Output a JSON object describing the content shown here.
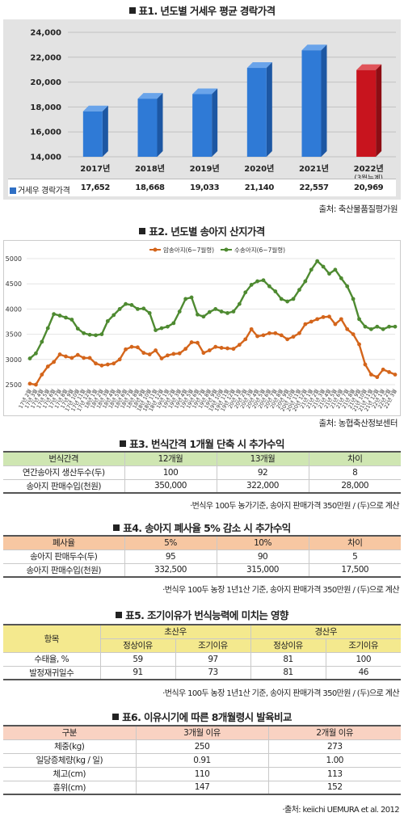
{
  "t1": {
    "title": "표1. 년도별 거세우 평균 경락가격",
    "source": "출처: 축산물품질평가원",
    "row_label": "거세우 경락가격",
    "years": [
      "2017년",
      "2018년",
      "2019년",
      "2020년",
      "2021년",
      "2022년"
    ],
    "year_sub": "(3월누계)",
    "values_text": [
      "17,652",
      "18,668",
      "19,033",
      "21,140",
      "22,557",
      "20,969"
    ],
    "yticks": [
      "24,000",
      "22,000",
      "20,000",
      "18,000",
      "16,000",
      "14,000"
    ],
    "colors": {
      "bar": "#2f7ad6",
      "highlight": "#c8141e",
      "legend": "#2f6fc4"
    }
  },
  "chart_data": [
    {
      "type": "bar",
      "title": "표1. 년도별 거세우 평균 경락가격",
      "categories": [
        "2017년",
        "2018년",
        "2019년",
        "2020년",
        "2021년",
        "2022년"
      ],
      "series": [
        {
          "name": "거세우 경락가격",
          "values": [
            17652,
            18668,
            19033,
            21140,
            22557,
            20969
          ]
        }
      ],
      "ylim": [
        14000,
        24000
      ],
      "grid": true
    },
    {
      "type": "line",
      "title": "표2. 년도별 송아지 산지가격",
      "x": [
        "17년 2월",
        "17년 3월",
        "17년 4월",
        "17년 5월",
        "17년 6월",
        "17년 7월",
        "17년 8월",
        "17년 9월",
        "17년 10월",
        "17년 11월",
        "17년 12월",
        "18년 1월",
        "18년 2월",
        "18년 3월",
        "18년 4월",
        "18년 5월",
        "18년 6월",
        "18년 7월",
        "18년 8월",
        "18년 9월",
        "18년 10월",
        "18년 11월",
        "18년 12월",
        "19년 1월",
        "19년 2월",
        "19년 3월",
        "19년 4월",
        "19년 5월",
        "19년 6월",
        "19년 7월",
        "19년 8월",
        "19년 9월",
        "19년 10월",
        "19년 11월",
        "19년 12월",
        "20년 1월",
        "20년 2월",
        "20년 3월",
        "20년 4월",
        "20년 5월",
        "20년 6월",
        "20년 7월",
        "20년 8월",
        "20년 9월",
        "20년 10월",
        "20년 11월",
        "20년 12월",
        "21년 1월",
        "21년 2월",
        "21년 3월",
        "21년 4월",
        "21년 5월",
        "21년 6월",
        "21년 7월",
        "21년 8월",
        "21년 9월",
        "21년 10월",
        "21년 11월",
        "21년 12월",
        "22년 1월",
        "22년 2월",
        "22년 3월"
      ],
      "series": [
        {
          "name": "암송아지(6~7월령)",
          "values": [
            2520,
            2500,
            2700,
            2860,
            2950,
            3100,
            3060,
            3030,
            3090,
            3030,
            3030,
            2920,
            2880,
            2900,
            2920,
            3000,
            3200,
            3250,
            3240,
            3130,
            3100,
            3180,
            3020,
            3080,
            3110,
            3120,
            3210,
            3340,
            3330,
            3130,
            3180,
            3250,
            3230,
            3220,
            3210,
            3290,
            3400,
            3600,
            3460,
            3480,
            3520,
            3520,
            3480,
            3400,
            3450,
            3520,
            3700,
            3750,
            3800,
            3840,
            3850,
            3700,
            3800,
            3600,
            3500,
            3300,
            2900,
            2700,
            2650,
            2800,
            2750,
            2700
          ]
        },
        {
          "name": "수송아지(6~7월령)",
          "values": [
            3020,
            3120,
            3350,
            3620,
            3900,
            3870,
            3830,
            3790,
            3610,
            3520,
            3490,
            3480,
            3500,
            3760,
            3880,
            4000,
            4100,
            4080,
            4000,
            4010,
            3920,
            3580,
            3620,
            3650,
            3720,
            3950,
            4200,
            4230,
            3890,
            3850,
            3940,
            4000,
            3950,
            3920,
            3950,
            4100,
            4330,
            4480,
            4550,
            4570,
            4450,
            4350,
            4200,
            4150,
            4200,
            4380,
            4550,
            4780,
            4950,
            4840,
            4700,
            4780,
            4610,
            4450,
            4200,
            3800,
            3650,
            3600,
            3650,
            3600,
            3650,
            3650
          ]
        }
      ],
      "ylim": [
        2500,
        5000
      ],
      "grid": true
    }
  ],
  "t2": {
    "title": "표2. 년도별 송아지 산지가격",
    "source": "출처: 농협축산정보센터",
    "legend": [
      "암송아지(6~7월령)",
      "수송아지(6~7월령)"
    ],
    "yticks": [
      "5000",
      "4500",
      "4000",
      "3500",
      "3000",
      "2500"
    ],
    "xlabels": [
      "17년 2월",
      "17년 3월",
      "17년 4월",
      "17년 5월",
      "17년 6월",
      "17년 7월",
      "17년 8월",
      "17년 9월",
      "17년 10월",
      "17년 11월",
      "17년 12월",
      "18년 1월",
      "18년 2월",
      "18년 3월",
      "18년 4월",
      "18년 5월",
      "18년 6월",
      "18년 7월",
      "18년 8월",
      "18년 9월",
      "18년 10월",
      "18년 11월",
      "18년 12월",
      "19년 1월",
      "19년 2월",
      "19년 3월",
      "19년 4월",
      "19년 5월",
      "19년 6월",
      "19년 7월",
      "19년 8월",
      "19년 9월",
      "19년 10월",
      "19년 11월",
      "19년 12월",
      "20년 1월",
      "20년 2월",
      "20년 3월",
      "20년 4월",
      "20년 5월",
      "20년 6월",
      "20년 7월",
      "20년 8월",
      "20년 9월",
      "20년 10월",
      "20년 11월",
      "20년 12월",
      "21년 1월",
      "21년 2월",
      "21년 3월",
      "21년 4월",
      "21년 5월",
      "21년 6월",
      "21년 7월",
      "21년 8월",
      "21년 9월",
      "21년 10월",
      "21년 11월",
      "21년 12월",
      "22년 1월",
      "22년 2월",
      "22년 3월"
    ],
    "colors": {
      "female": "#d4651b",
      "male": "#4e8a31"
    }
  },
  "t3": {
    "title": "표3. 번식간격 1개월 단축 시 추가수익",
    "header": [
      "번식간격",
      "12개월",
      "13개월",
      "차이"
    ],
    "rows": [
      [
        "연간송아지 생산두수(두)",
        "100",
        "92",
        "8"
      ],
      [
        "송아지 판매수입(천원)",
        "350,000",
        "322,000",
        "28,000"
      ]
    ],
    "note": "·번식우 100두 농가기준, 송아지 판매가격 350만원 / (두)으로 계산"
  },
  "t4": {
    "title": "표4. 송아지 폐사율 5% 감소 시 추가수익",
    "header": [
      "폐사율",
      "5%",
      "10%",
      "차이"
    ],
    "rows": [
      [
        "송아지 판매두수(두)",
        "95",
        "90",
        "5"
      ],
      [
        "송아지 판매수입(천원)",
        "332,500",
        "315,000",
        "17,500"
      ]
    ],
    "note": "·번식우 100두 농장 1년1산 기준, 송아지 판매가격 350만원 / (두)으로 계산"
  },
  "t5": {
    "title": "표5. 조기이유가 번식능력에 미치는 영향",
    "header_top": [
      "항목",
      "초산우",
      "경산우"
    ],
    "header_sub": [
      "정상이유",
      "조기이유",
      "정상이유",
      "조기이유"
    ],
    "rows": [
      [
        "수태율, %",
        "59",
        "97",
        "81",
        "100"
      ],
      [
        "발정재귀일수",
        "91",
        "73",
        "81",
        "46"
      ]
    ],
    "note": "·번식우 100두 농장 1년1산 기준, 송아지 판매가격 350만원 / (두)으로 계산"
  },
  "t6": {
    "title": "표6. 이유시기에 따른 8개월령시 발육비교",
    "header": [
      "구분",
      "3개월 이유",
      "2개월 이유"
    ],
    "rows": [
      [
        "체중(kg)",
        "250",
        "273"
      ],
      [
        "일당증체량(kg / 일)",
        "0.91",
        "1.00"
      ],
      [
        "체고(cm)",
        "110",
        "113"
      ],
      [
        "흉위(cm)",
        "147",
        "152"
      ]
    ],
    "source": "·출처: keiichi UEMURA et al. 2012"
  }
}
